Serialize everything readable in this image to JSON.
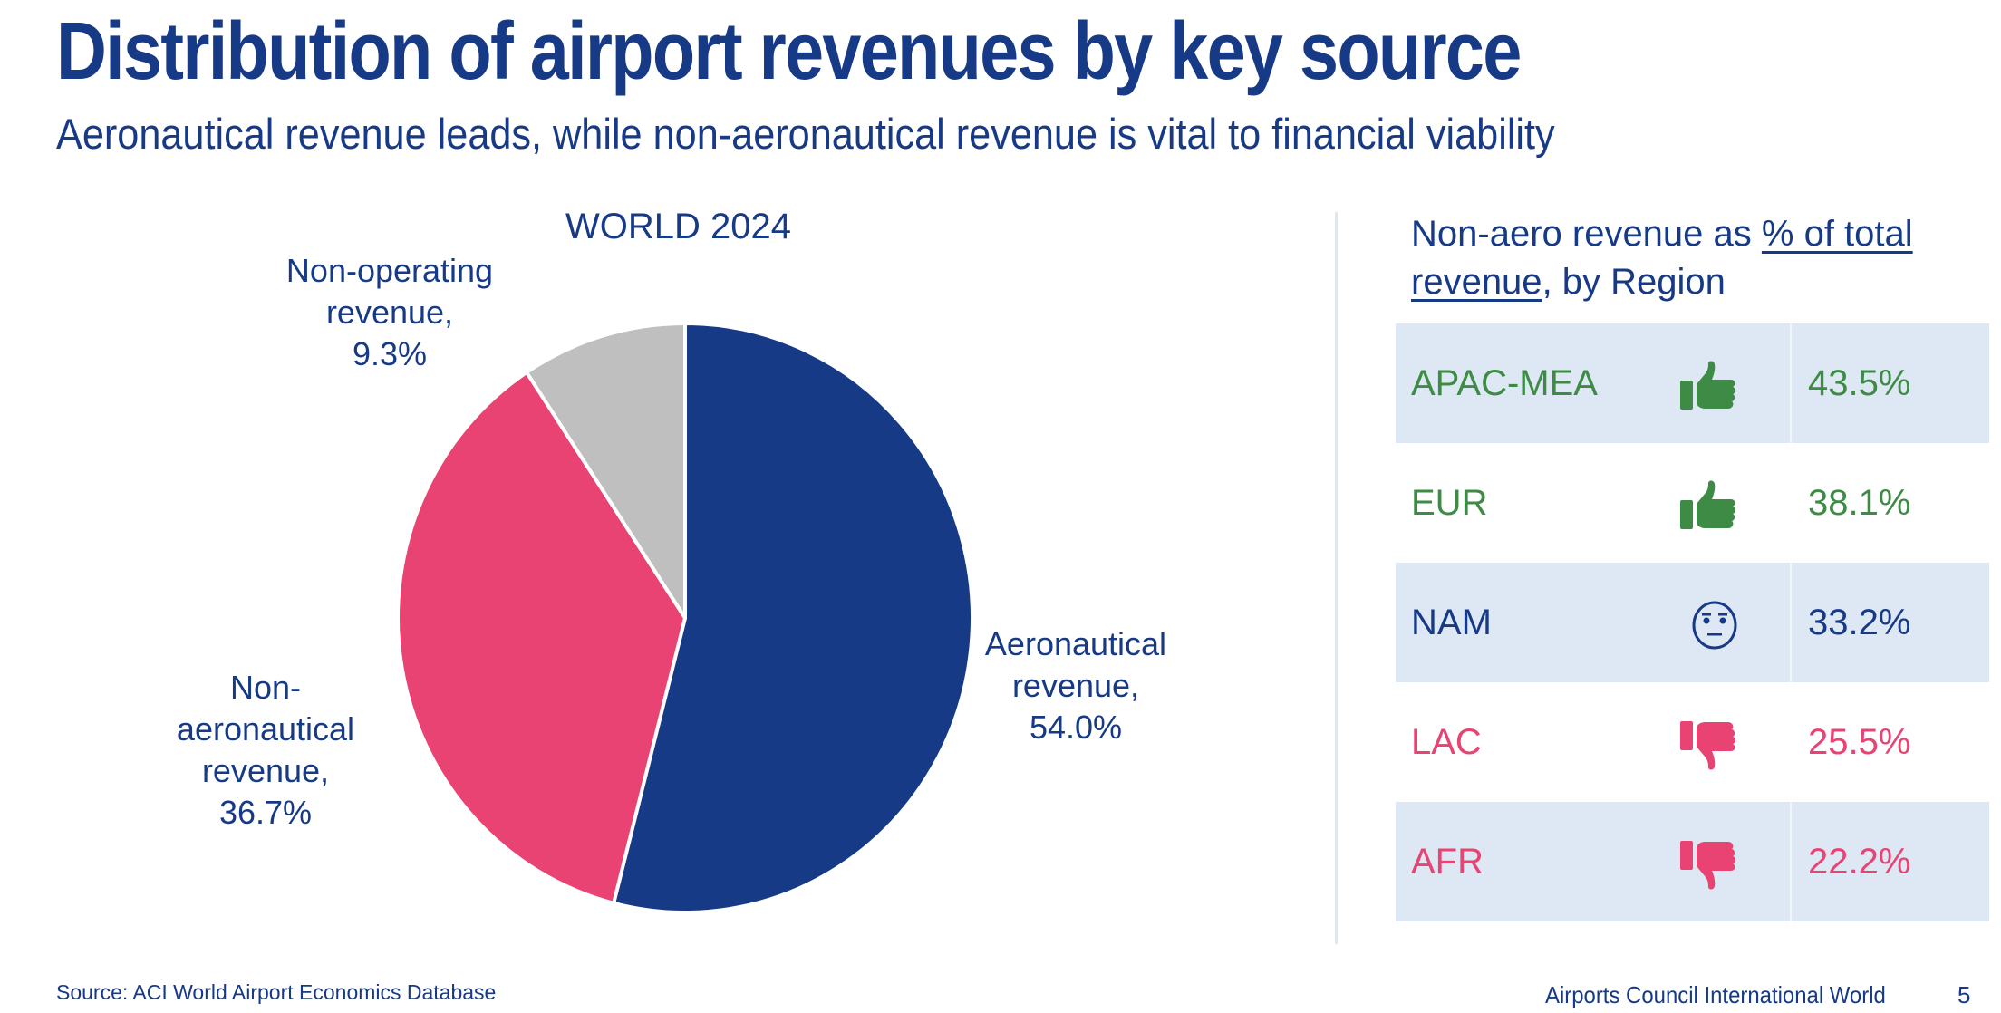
{
  "header": {
    "title": "Distribution of airport revenues by key source",
    "subtitle": "Aeronautical revenue leads, while non-aeronautical revenue is vital to financial viability"
  },
  "colors": {
    "navy": "#173A87",
    "pink": "#E84372",
    "gray": "#BFBFBF",
    "green": "#3D8B44",
    "row_shade": "#DEE8F5"
  },
  "chart_data": {
    "type": "pie",
    "title": "WORLD 2024",
    "start_angle": "12 o'clock, clockwise",
    "slices": [
      {
        "label_lines": [
          "Aeronautical",
          "revenue,",
          "54.0%"
        ],
        "name": "Aeronautical revenue",
        "value": 54.0,
        "color": "#173A87"
      },
      {
        "label_lines": [
          "Non-",
          "aeronautical",
          "revenue,",
          "36.7%"
        ],
        "name": "Non-aeronautical revenue",
        "value": 36.7,
        "color": "#E84372"
      },
      {
        "label_lines": [
          "Non-operating",
          "revenue,",
          "9.3%"
        ],
        "name": "Non-operating revenue",
        "value": 9.3,
        "color": "#BFBFBF"
      }
    ]
  },
  "region_panel": {
    "title_pre": "Non-aero revenue as ",
    "title_link1": "% of total",
    "title_link2": "revenue",
    "title_post": ", by Region",
    "rows": [
      {
        "region": "APAC-MEA",
        "icon": "thumbs-up",
        "value": "43.5%",
        "color": "#3D8B44",
        "shaded": true
      },
      {
        "region": "EUR",
        "icon": "thumbs-up",
        "value": "38.1%",
        "color": "#3D8B44",
        "shaded": false
      },
      {
        "region": "NAM",
        "icon": "neutral-face",
        "value": "33.2%",
        "color": "#173A87",
        "shaded": true
      },
      {
        "region": "LAC",
        "icon": "thumbs-down",
        "value": "25.5%",
        "color": "#E84372",
        "shaded": false
      },
      {
        "region": "AFR",
        "icon": "thumbs-down",
        "value": "22.2%",
        "color": "#E84372",
        "shaded": true
      }
    ]
  },
  "footer": {
    "source": "Source: ACI World Airport Economics Database",
    "organization": "Airports Council International World",
    "page_number": "5"
  }
}
